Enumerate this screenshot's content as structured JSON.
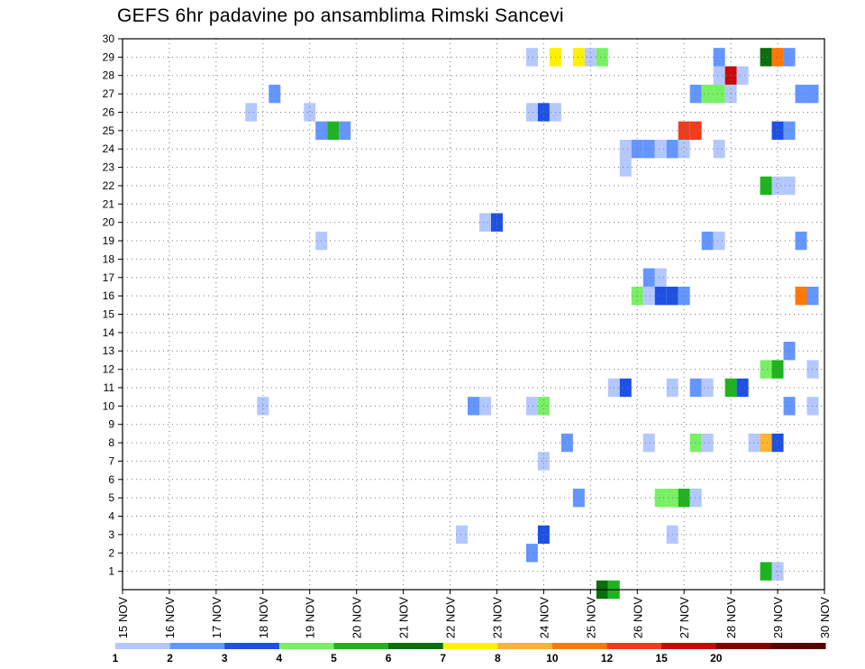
{
  "chart_data": {
    "type": "heatmap",
    "title": "GEFS 6hr padavine po ansamblima Rimski Sancevi",
    "x_ticks": [
      "15 NOV",
      "16 NOV",
      "17 NOV",
      "18 NOV",
      "19 NOV",
      "20 NOV",
      "21 NOV",
      "22 NOV",
      "23 NOV",
      "24 NOV",
      "25 NOV",
      "26 NOV",
      "27 NOV",
      "28 NOV",
      "29 NOV",
      "30 NOV"
    ],
    "y_ticks": [
      "1",
      "2",
      "3",
      "4",
      "5",
      "6",
      "7",
      "8",
      "9",
      "10",
      "11",
      "12",
      "13",
      "14",
      "15",
      "16",
      "17",
      "18",
      "19",
      "20",
      "21",
      "22",
      "23",
      "24",
      "25",
      "26",
      "27",
      "28",
      "29",
      "30"
    ],
    "ylim": [
      0,
      30
    ],
    "grid": true,
    "colorbar": {
      "colors": [
        "#b4c8ff",
        "#6496ff",
        "#1e50e6",
        "#78f064",
        "#1eb41e",
        "#0a6e0a",
        "#fff000",
        "#ffb42d",
        "#ff7800",
        "#f03c1e",
        "#c80a0a",
        "#820000",
        "#5a0000"
      ],
      "labels": [
        "1",
        "2",
        "3",
        "4",
        "5",
        "6",
        "7",
        "8",
        "10",
        "12",
        "15",
        "20"
      ]
    },
    "cells": [
      {
        "x": "23 NOV 18h",
        "y": 29,
        "color": "#b4c8ff"
      },
      {
        "x": "24 NOV 06h",
        "y": 29,
        "color": "#fff000"
      },
      {
        "x": "24 NOV 18h",
        "y": 29,
        "color": "#fff000"
      },
      {
        "x": "25 NOV 00h",
        "y": 29,
        "color": "#b4c8ff"
      },
      {
        "x": "25 NOV 06h",
        "y": 29,
        "color": "#78f064"
      },
      {
        "x": "27 NOV 18h",
        "y": 29,
        "color": "#6496ff"
      },
      {
        "x": "28 NOV 18h",
        "y": 29,
        "color": "#0a6e0a"
      },
      {
        "x": "29 NOV 00h",
        "y": 29,
        "color": "#ff7800"
      },
      {
        "x": "29 NOV 06h",
        "y": 29,
        "color": "#6496ff"
      },
      {
        "x": "27 NOV 18h",
        "y": 28,
        "color": "#b4c8ff"
      },
      {
        "x": "28 NOV 00h",
        "y": 28,
        "color": "#c80a0a"
      },
      {
        "x": "28 NOV 06h",
        "y": 28,
        "color": "#b4c8ff"
      },
      {
        "x": "18 NOV 06h",
        "y": 27,
        "color": "#6496ff"
      },
      {
        "x": "27 NOV 06h",
        "y": 27,
        "color": "#6496ff"
      },
      {
        "x": "27 NOV 12h",
        "y": 27,
        "color": "#78f064"
      },
      {
        "x": "27 NOV 18h",
        "y": 27,
        "color": "#78f064"
      },
      {
        "x": "28 NOV 00h",
        "y": 27,
        "color": "#b4c8ff"
      },
      {
        "x": "29 NOV 12h",
        "y": 27,
        "color": "#6496ff"
      },
      {
        "x": "29 NOV 18h",
        "y": 27,
        "color": "#6496ff"
      },
      {
        "x": "17 NOV 18h",
        "y": 26,
        "color": "#b4c8ff"
      },
      {
        "x": "19 NOV 00h",
        "y": 26,
        "color": "#b4c8ff"
      },
      {
        "x": "23 NOV 18h",
        "y": 26,
        "color": "#b4c8ff"
      },
      {
        "x": "24 NOV 00h",
        "y": 26,
        "color": "#1e50e6"
      },
      {
        "x": "24 NOV 06h",
        "y": 26,
        "color": "#b4c8ff"
      },
      {
        "x": "19 NOV 06h",
        "y": 25,
        "color": "#6496ff"
      },
      {
        "x": "19 NOV 12h",
        "y": 25,
        "color": "#1eb41e"
      },
      {
        "x": "19 NOV 18h",
        "y": 25,
        "color": "#6496ff"
      },
      {
        "x": "27 NOV 00h",
        "y": 25,
        "color": "#f03c1e"
      },
      {
        "x": "27 NOV 06h",
        "y": 25,
        "color": "#f03c1e"
      },
      {
        "x": "29 NOV 00h",
        "y": 25,
        "color": "#1e50e6"
      },
      {
        "x": "29 NOV 06h",
        "y": 25,
        "color": "#6496ff"
      },
      {
        "x": "25 NOV 18h",
        "y": 24,
        "color": "#b4c8ff"
      },
      {
        "x": "26 NOV 00h",
        "y": 24,
        "color": "#6496ff"
      },
      {
        "x": "26 NOV 06h",
        "y": 24,
        "color": "#6496ff"
      },
      {
        "x": "26 NOV 12h",
        "y": 24,
        "color": "#b4c8ff"
      },
      {
        "x": "26 NOV 18h",
        "y": 24,
        "color": "#6496ff"
      },
      {
        "x": "27 NOV 00h",
        "y": 24,
        "color": "#b4c8ff"
      },
      {
        "x": "27 NOV 18h",
        "y": 24,
        "color": "#b4c8ff"
      },
      {
        "x": "25 NOV 18h",
        "y": 23,
        "color": "#b4c8ff"
      },
      {
        "x": "28 NOV 18h",
        "y": 22,
        "color": "#1eb41e"
      },
      {
        "x": "29 NOV 00h",
        "y": 22,
        "color": "#b4c8ff"
      },
      {
        "x": "29 NOV 06h",
        "y": 22,
        "color": "#b4c8ff"
      },
      {
        "x": "22 NOV 18h",
        "y": 20,
        "color": "#b4c8ff"
      },
      {
        "x": "23 NOV 00h",
        "y": 20,
        "color": "#1e50e6"
      },
      {
        "x": "19 NOV 06h",
        "y": 19,
        "color": "#b4c8ff"
      },
      {
        "x": "27 NOV 12h",
        "y": 19,
        "color": "#6496ff"
      },
      {
        "x": "27 NOV 18h",
        "y": 19,
        "color": "#b4c8ff"
      },
      {
        "x": "29 NOV 12h",
        "y": 19,
        "color": "#6496ff"
      },
      {
        "x": "26 NOV 06h",
        "y": 17,
        "color": "#6496ff"
      },
      {
        "x": "26 NOV 12h",
        "y": 17,
        "color": "#b4c8ff"
      },
      {
        "x": "26 NOV 00h",
        "y": 16,
        "color": "#78f064"
      },
      {
        "x": "26 NOV 06h",
        "y": 16,
        "color": "#b4c8ff"
      },
      {
        "x": "26 NOV 12h",
        "y": 16,
        "color": "#1e50e6"
      },
      {
        "x": "26 NOV 18h",
        "y": 16,
        "color": "#1e50e6"
      },
      {
        "x": "27 NOV 00h",
        "y": 16,
        "color": "#6496ff"
      },
      {
        "x": "29 NOV 12h",
        "y": 16,
        "color": "#ff7800"
      },
      {
        "x": "29 NOV 18h",
        "y": 16,
        "color": "#6496ff"
      },
      {
        "x": "29 NOV 06h",
        "y": 13,
        "color": "#6496ff"
      },
      {
        "x": "28 NOV 18h",
        "y": 12,
        "color": "#78f064"
      },
      {
        "x": "29 NOV 00h",
        "y": 12,
        "color": "#1eb41e"
      },
      {
        "x": "29 NOV 18h",
        "y": 12,
        "color": "#b4c8ff"
      },
      {
        "x": "25 NOV 12h",
        "y": 11,
        "color": "#b4c8ff"
      },
      {
        "x": "25 NOV 18h",
        "y": 11,
        "color": "#1e50e6"
      },
      {
        "x": "26 NOV 18h",
        "y": 11,
        "color": "#b4c8ff"
      },
      {
        "x": "27 NOV 06h",
        "y": 11,
        "color": "#6496ff"
      },
      {
        "x": "27 NOV 12h",
        "y": 11,
        "color": "#b4c8ff"
      },
      {
        "x": "28 NOV 00h",
        "y": 11,
        "color": "#1eb41e"
      },
      {
        "x": "28 NOV 06h",
        "y": 11,
        "color": "#1e50e6"
      },
      {
        "x": "18 NOV 00h",
        "y": 10,
        "color": "#b4c8ff"
      },
      {
        "x": "22 NOV 12h",
        "y": 10,
        "color": "#6496ff"
      },
      {
        "x": "22 NOV 18h",
        "y": 10,
        "color": "#b4c8ff"
      },
      {
        "x": "23 NOV 18h",
        "y": 10,
        "color": "#b4c8ff"
      },
      {
        "x": "24 NOV 00h",
        "y": 10,
        "color": "#78f064"
      },
      {
        "x": "29 NOV 06h",
        "y": 10,
        "color": "#6496ff"
      },
      {
        "x": "29 NOV 18h",
        "y": 10,
        "color": "#b4c8ff"
      },
      {
        "x": "24 NOV 12h",
        "y": 8,
        "color": "#6496ff"
      },
      {
        "x": "26 NOV 06h",
        "y": 8,
        "color": "#b4c8ff"
      },
      {
        "x": "27 NOV 06h",
        "y": 8,
        "color": "#78f064"
      },
      {
        "x": "27 NOV 12h",
        "y": 8,
        "color": "#b4c8ff"
      },
      {
        "x": "28 NOV 12h",
        "y": 8,
        "color": "#b4c8ff"
      },
      {
        "x": "28 NOV 18h",
        "y": 8,
        "color": "#ffb42d"
      },
      {
        "x": "29 NOV 00h",
        "y": 8,
        "color": "#1e50e6"
      },
      {
        "x": "24 NOV 00h",
        "y": 7,
        "color": "#b4c8ff"
      },
      {
        "x": "24 NOV 18h",
        "y": 5,
        "color": "#6496ff"
      },
      {
        "x": "26 NOV 12h",
        "y": 5,
        "color": "#78f064"
      },
      {
        "x": "26 NOV 18h",
        "y": 5,
        "color": "#78f064"
      },
      {
        "x": "27 NOV 00h",
        "y": 5,
        "color": "#1eb41e"
      },
      {
        "x": "27 NOV 06h",
        "y": 5,
        "color": "#b4c8ff"
      },
      {
        "x": "22 NOV 06h",
        "y": 3,
        "color": "#b4c8ff"
      },
      {
        "x": "24 NOV 00h",
        "y": 3,
        "color": "#1e50e6"
      },
      {
        "x": "26 NOV 18h",
        "y": 3,
        "color": "#b4c8ff"
      },
      {
        "x": "23 NOV 18h",
        "y": 2,
        "color": "#6496ff"
      },
      {
        "x": "28 NOV 18h",
        "y": 1,
        "color": "#1eb41e"
      },
      {
        "x": "29 NOV 00h",
        "y": 1,
        "color": "#b4c8ff"
      },
      {
        "x": "25 NOV 06h",
        "y": 0,
        "color": "#0a6e0a"
      },
      {
        "x": "25 NOV 12h",
        "y": 0,
        "color": "#1eb41e"
      }
    ]
  }
}
